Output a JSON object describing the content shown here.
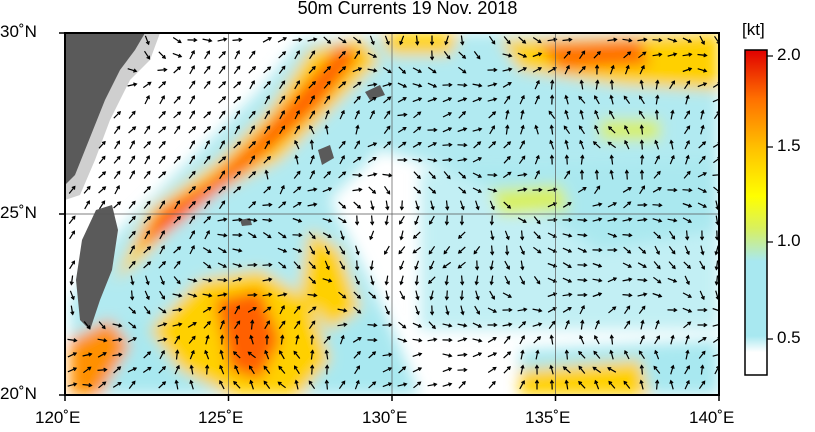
{
  "title": "50m Currents  19 Nov. 2018",
  "axes": {
    "x_ticks": [
      "120˚E",
      "125˚E",
      "130˚E",
      "135˚E",
      "140˚E"
    ],
    "y_ticks": [
      "30˚N",
      "25˚N",
      "20˚N"
    ]
  },
  "colorbar": {
    "unit": "[kt]",
    "ticks": [
      "2.0",
      "1.5",
      "1.0",
      "0.5"
    ],
    "range": [
      0.3,
      2.0
    ],
    "colors": [
      "#ffffff",
      "#a8e8f0",
      "#9ee0d0",
      "#d8f060",
      "#ffff00",
      "#ffc000",
      "#ff7000",
      "#ff3000",
      "#e00000"
    ]
  },
  "map_extent": {
    "lon": [
      120,
      140
    ],
    "lat": [
      20,
      30
    ]
  },
  "land_color": "#5a5a5a",
  "shelf_color": "#cfcfcf",
  "grid": true
}
